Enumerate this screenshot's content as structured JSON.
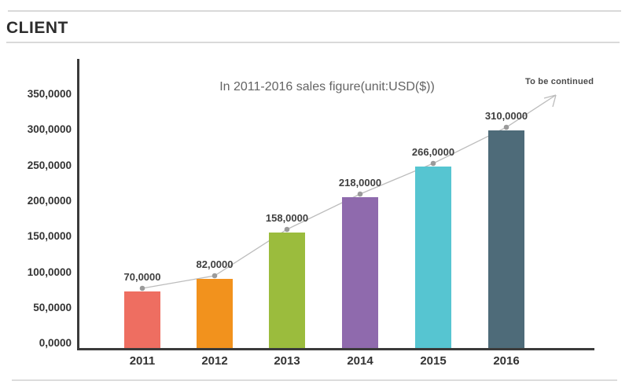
{
  "header": {
    "title": "CLIENT"
  },
  "chart_data": {
    "type": "bar",
    "title": "In 2011-2016 sales figure(unit:USD($))",
    "xlabel": "",
    "ylabel": "",
    "categories": [
      "2011",
      "2012",
      "2013",
      "2014",
      "2015",
      "2016"
    ],
    "values": [
      700000,
      820000,
      1580000,
      2180000,
      2660000,
      3100000
    ],
    "value_labels": [
      "70,0000",
      "82,0000",
      "158,0000",
      "218,0000",
      "266,0000",
      "310,0000"
    ],
    "y_tick_labels": [
      "350,0000",
      "300,0000",
      "250,0000",
      "200,0000",
      "150,0000",
      "100,0000",
      "50,0000",
      "0,0000"
    ],
    "ylim": [
      0,
      3500000
    ],
    "grid": false,
    "legend": false,
    "bar_colors": [
      "#ee6e61",
      "#f2921d",
      "#9bbc3d",
      "#8f6aad",
      "#56c5d1",
      "#4e6b79"
    ],
    "axis_color": "#3b3b3b",
    "annotation": "To be continued",
    "overlay_line": {
      "style": "trend line through bar tops with round markers, ending in an arrow",
      "line_color": "#bcbcbc",
      "marker_color": "#9b9b9b"
    }
  }
}
